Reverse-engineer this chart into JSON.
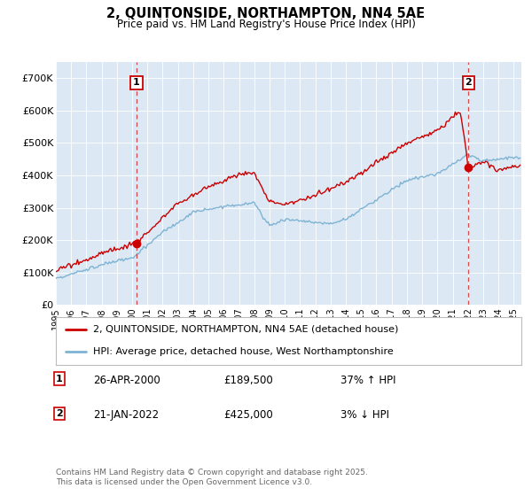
{
  "title": "2, QUINTONSIDE, NORTHAMPTON, NN4 5AE",
  "subtitle": "Price paid vs. HM Land Registry's House Price Index (HPI)",
  "background_color": "#ffffff",
  "plot_bg_color": "#dce9f5",
  "red_color": "#cc0000",
  "blue_color": "#7fb3d3",
  "sale1_year": 2000.29,
  "sale1_price": 189500,
  "sale2_year": 2022.04,
  "sale2_price": 425000,
  "legend_label_red": "2, QUINTONSIDE, NORTHAMPTON, NN4 5AE (detached house)",
  "legend_label_blue": "HPI: Average price, detached house, West Northamptonshire",
  "sale1_date": "26-APR-2000",
  "sale1_hpi": "37% ↑ HPI",
  "sale2_date": "21-JAN-2022",
  "sale2_hpi": "3% ↓ HPI",
  "footer": "Contains HM Land Registry data © Crown copyright and database right 2025.\nThis data is licensed under the Open Government Licence v3.0.",
  "ylim": [
    0,
    750000
  ],
  "yticks": [
    0,
    100000,
    200000,
    300000,
    400000,
    500000,
    600000,
    700000
  ],
  "ytick_labels": [
    "£0",
    "£100K",
    "£200K",
    "£300K",
    "£400K",
    "£500K",
    "£600K",
    "£700K"
  ],
  "xmin": 1995,
  "xmax": 2025.5
}
